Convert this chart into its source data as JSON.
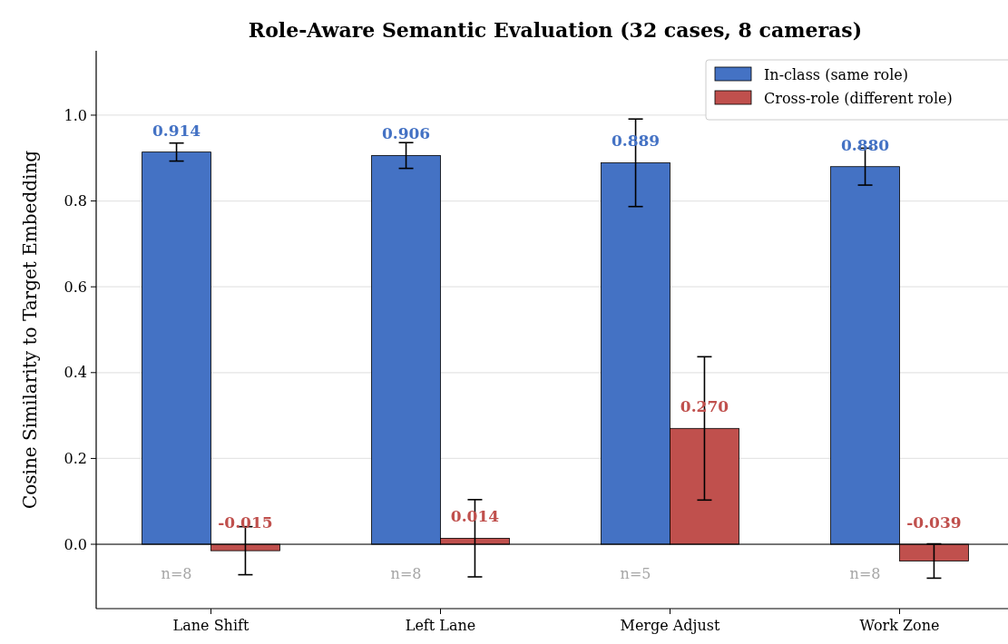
{
  "chart_data": {
    "type": "bar",
    "title": "Role-Aware Semantic Evaluation (32 cases, 8 cameras)",
    "ylabel": "Cosine Similarity to Target Embedding",
    "categories": [
      "Lane Shift",
      "Left Lane",
      "Merge Adjust",
      "Work Zone"
    ],
    "series": [
      {
        "name": "In-class (same role)",
        "color": "#4472c4",
        "values": [
          0.914,
          0.906,
          0.889,
          0.88
        ],
        "errors": [
          0.021,
          0.03,
          0.102,
          0.043
        ],
        "value_labels": [
          "0.914",
          "0.906",
          "0.889",
          "0.880"
        ]
      },
      {
        "name": "Cross-role (different role)",
        "color": "#c0504d",
        "values": [
          -0.015,
          0.014,
          0.27,
          -0.039
        ],
        "errors": [
          0.056,
          0.09,
          0.167,
          0.04
        ],
        "value_labels": [
          "-0.015",
          "0.014",
          "0.270",
          "-0.039"
        ]
      }
    ],
    "ylim": [
      -0.15,
      1.15
    ],
    "yticks": [
      {
        "value": 0,
        "label": "0.0"
      },
      0.2,
      0.4,
      0.6,
      0.8,
      {
        "value": 1,
        "label": "1.0"
      }
    ],
    "grid": "y",
    "legend": "top right",
    "ref_lines": [
      {
        "axis": "y",
        "value": 0,
        "color": "#000000"
      }
    ],
    "annotations": [
      "n=8",
      "n=8",
      "n=5",
      "n=8"
    ]
  }
}
